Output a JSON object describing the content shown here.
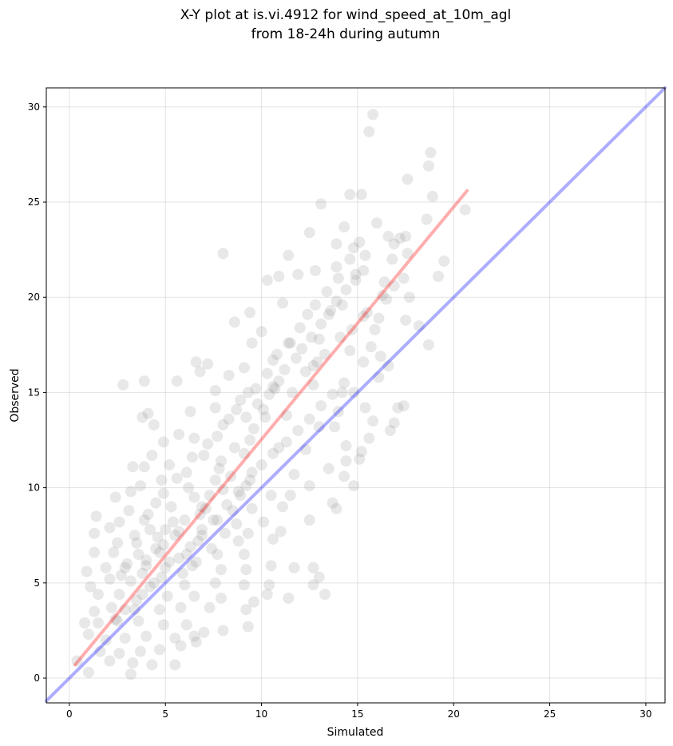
{
  "chart_data": {
    "type": "scatter",
    "title_lines": [
      "X-Y plot at is.vi.4912 for wind_speed_at_10m_agl",
      "from 18-24h during autumn"
    ],
    "xlabel": "Simulated",
    "ylabel": "Observed",
    "xlim": [
      -1.2,
      31
    ],
    "ylim": [
      -1.3,
      31
    ],
    "xticks": [
      0,
      5,
      10,
      15,
      20,
      25,
      30
    ],
    "yticks": [
      0,
      5,
      10,
      15,
      20,
      25,
      30
    ],
    "grid": true,
    "point_color": "#808080",
    "point_opacity": 0.18,
    "series": [
      {
        "type": "scatter",
        "points": [
          [
            15.8,
            29.6
          ],
          [
            15.6,
            28.7
          ],
          [
            18.8,
            27.6
          ],
          [
            18.7,
            26.9
          ],
          [
            17.6,
            26.2
          ],
          [
            15.2,
            25.4
          ],
          [
            14.6,
            25.4
          ],
          [
            18.9,
            25.3
          ],
          [
            20.6,
            24.6
          ],
          [
            13.1,
            24.9
          ],
          [
            18.6,
            24.1
          ],
          [
            16.0,
            23.9
          ],
          [
            12.5,
            23.4
          ],
          [
            14.3,
            23.7
          ],
          [
            16.6,
            23.2
          ],
          [
            17.2,
            23.1
          ],
          [
            17.5,
            23.2
          ],
          [
            16.9,
            22.8
          ],
          [
            8.0,
            22.3
          ],
          [
            11.4,
            22.2
          ],
          [
            14.8,
            22.6
          ],
          [
            13.9,
            22.8
          ],
          [
            15.4,
            22.2
          ],
          [
            16.8,
            22.0
          ],
          [
            17.6,
            22.3
          ],
          [
            19.5,
            21.9
          ],
          [
            19.2,
            21.1
          ],
          [
            11.9,
            21.2
          ],
          [
            12.8,
            21.4
          ],
          [
            10.9,
            21.1
          ],
          [
            10.3,
            20.9
          ],
          [
            13.9,
            21.6
          ],
          [
            14.9,
            21.2
          ],
          [
            16.4,
            20.8
          ],
          [
            17.7,
            20.0
          ],
          [
            16.5,
            19.9
          ],
          [
            11.1,
            19.7
          ],
          [
            9.4,
            19.2
          ],
          [
            8.6,
            18.7
          ],
          [
            12.4,
            19.1
          ],
          [
            13.6,
            19.3
          ],
          [
            14.2,
            19.6
          ],
          [
            15.3,
            19.0
          ],
          [
            16.1,
            18.9
          ],
          [
            17.5,
            18.8
          ],
          [
            18.2,
            18.5
          ],
          [
            15.9,
            18.3
          ],
          [
            10.0,
            18.2
          ],
          [
            9.5,
            17.6
          ],
          [
            11.4,
            17.6
          ],
          [
            13.0,
            17.8
          ],
          [
            14.6,
            17.2
          ],
          [
            15.7,
            17.4
          ],
          [
            18.7,
            17.5
          ],
          [
            16.2,
            16.9
          ],
          [
            15.3,
            16.6
          ],
          [
            16.6,
            16.4
          ],
          [
            12.7,
            16.4
          ],
          [
            10.6,
            16.7
          ],
          [
            9.1,
            16.3
          ],
          [
            8.3,
            15.9
          ],
          [
            7.2,
            16.5
          ],
          [
            5.6,
            15.6
          ],
          [
            3.9,
            15.6
          ],
          [
            2.8,
            15.4
          ],
          [
            6.6,
            16.6
          ],
          [
            6.8,
            16.1
          ],
          [
            7.6,
            15.1
          ],
          [
            10.6,
            15.3
          ],
          [
            12.7,
            15.4
          ],
          [
            14.2,
            15.0
          ],
          [
            14.8,
            15.0
          ],
          [
            16.1,
            15.8
          ],
          [
            17.4,
            14.3
          ],
          [
            17.1,
            14.2
          ],
          [
            15.4,
            14.2
          ],
          [
            14.0,
            14.0
          ],
          [
            4.1,
            13.9
          ],
          [
            3.8,
            13.7
          ],
          [
            4.4,
            13.3
          ],
          [
            6.3,
            14.0
          ],
          [
            7.6,
            14.2
          ],
          [
            9.2,
            13.7
          ],
          [
            11.3,
            13.8
          ],
          [
            13.0,
            13.2
          ],
          [
            13.8,
            13.2
          ],
          [
            15.8,
            13.5
          ],
          [
            16.7,
            13.0
          ],
          [
            16.9,
            13.4
          ],
          [
            15.6,
            12.6
          ],
          [
            4.9,
            12.4
          ],
          [
            5.7,
            12.8
          ],
          [
            6.5,
            12.6
          ],
          [
            9.4,
            12.5
          ],
          [
            10.9,
            12.1
          ],
          [
            12.3,
            12.0
          ],
          [
            14.4,
            12.2
          ],
          [
            15.2,
            11.9
          ],
          [
            4.3,
            11.7
          ],
          [
            3.3,
            11.1
          ],
          [
            3.9,
            11.1
          ],
          [
            5.2,
            11.2
          ],
          [
            6.1,
            10.8
          ],
          [
            7.8,
            11.0
          ],
          [
            9.5,
            10.8
          ],
          [
            11.7,
            10.7
          ],
          [
            13.5,
            11.0
          ],
          [
            14.4,
            11.4
          ],
          [
            15.1,
            11.5
          ],
          [
            14.3,
            10.6
          ],
          [
            14.8,
            10.1
          ],
          [
            12.5,
            10.1
          ],
          [
            10.5,
            9.6
          ],
          [
            9.2,
            10.1
          ],
          [
            7.6,
            10.4
          ],
          [
            4.8,
            10.4
          ],
          [
            3.7,
            10.1
          ],
          [
            3.2,
            9.8
          ],
          [
            2.4,
            9.5
          ],
          [
            6.5,
            9.5
          ],
          [
            8.9,
            9.6
          ],
          [
            11.5,
            9.6
          ],
          [
            13.7,
            9.2
          ],
          [
            13.9,
            8.9
          ],
          [
            11.1,
            9.0
          ],
          [
            8.5,
            8.8
          ],
          [
            6.9,
            9.0
          ],
          [
            4.5,
            9.2
          ],
          [
            3.1,
            8.8
          ],
          [
            1.4,
            8.5
          ],
          [
            2.6,
            8.2
          ],
          [
            3.9,
            8.3
          ],
          [
            5.4,
            8.2
          ],
          [
            7.7,
            8.3
          ],
          [
            10.1,
            8.2
          ],
          [
            12.5,
            8.3
          ],
          [
            11.0,
            7.7
          ],
          [
            9.3,
            7.6
          ],
          [
            6.9,
            7.5
          ],
          [
            5.7,
            7.7
          ],
          [
            4.2,
            7.8
          ],
          [
            2.1,
            7.9
          ],
          [
            1.3,
            7.6
          ],
          [
            2.5,
            7.1
          ],
          [
            3.5,
            7.1
          ],
          [
            4.9,
            7.0
          ],
          [
            6.7,
            7.2
          ],
          [
            8.8,
            7.2
          ],
          [
            10.6,
            7.3
          ],
          [
            9.1,
            6.5
          ],
          [
            7.7,
            6.5
          ],
          [
            6.1,
            6.5
          ],
          [
            4.7,
            6.6
          ],
          [
            3.6,
            6.5
          ],
          [
            2.3,
            6.6
          ],
          [
            1.3,
            6.6
          ],
          [
            0.9,
            5.6
          ],
          [
            1.9,
            5.8
          ],
          [
            2.9,
            5.8
          ],
          [
            4.0,
            5.9
          ],
          [
            5.0,
            5.8
          ],
          [
            6.4,
            5.9
          ],
          [
            7.9,
            5.7
          ],
          [
            9.2,
            5.7
          ],
          [
            10.5,
            5.9
          ],
          [
            11.7,
            5.8
          ],
          [
            12.7,
            5.8
          ],
          [
            13.0,
            5.3
          ],
          [
            12.7,
            4.9
          ],
          [
            10.4,
            4.9
          ],
          [
            9.1,
            4.9
          ],
          [
            7.6,
            5.0
          ],
          [
            6.0,
            4.9
          ],
          [
            4.4,
            5.0
          ],
          [
            3.2,
            5.1
          ],
          [
            2.1,
            5.2
          ],
          [
            1.1,
            4.8
          ],
          [
            1.5,
            4.4
          ],
          [
            2.6,
            4.4
          ],
          [
            3.8,
            4.4
          ],
          [
            5.1,
            4.3
          ],
          [
            6.5,
            4.3
          ],
          [
            7.9,
            4.2
          ],
          [
            10.3,
            4.4
          ],
          [
            11.4,
            4.2
          ],
          [
            13.3,
            4.4
          ],
          [
            9.6,
            4.0
          ],
          [
            9.2,
            3.6
          ],
          [
            7.3,
            3.7
          ],
          [
            5.8,
            3.7
          ],
          [
            4.7,
            3.6
          ],
          [
            3.4,
            3.6
          ],
          [
            2.2,
            3.7
          ],
          [
            1.3,
            3.5
          ],
          [
            0.8,
            2.9
          ],
          [
            1.5,
            2.9
          ],
          [
            2.5,
            3.0
          ],
          [
            3.6,
            3.0
          ],
          [
            4.9,
            2.8
          ],
          [
            6.1,
            2.8
          ],
          [
            7.0,
            2.4
          ],
          [
            9.3,
            2.7
          ],
          [
            8.0,
            2.5
          ],
          [
            6.5,
            2.2
          ],
          [
            5.5,
            2.1
          ],
          [
            4.0,
            2.2
          ],
          [
            2.9,
            2.1
          ],
          [
            1.9,
            2.0
          ],
          [
            1.0,
            2.3
          ],
          [
            1.6,
            1.4
          ],
          [
            2.6,
            1.3
          ],
          [
            3.7,
            1.4
          ],
          [
            4.7,
            1.5
          ],
          [
            5.8,
            1.7
          ],
          [
            6.6,
            1.9
          ],
          [
            2.1,
            0.9
          ],
          [
            3.3,
            0.8
          ],
          [
            4.3,
            0.7
          ],
          [
            5.5,
            0.7
          ],
          [
            1.0,
            0.3
          ],
          [
            3.2,
            0.2
          ],
          [
            0.4,
            0.9
          ],
          [
            4.0,
            6.2
          ],
          [
            4.5,
            6.8
          ],
          [
            5.2,
            6.1
          ],
          [
            3.8,
            5.5
          ],
          [
            4.8,
            5.3
          ],
          [
            5.5,
            7.5
          ],
          [
            6.0,
            8.3
          ],
          [
            5.0,
            7.8
          ],
          [
            6.8,
            8.6
          ],
          [
            7.3,
            9.6
          ],
          [
            7.1,
            8.9
          ],
          [
            8.0,
            9.9
          ],
          [
            8.4,
            10.6
          ],
          [
            7.9,
            11.4
          ],
          [
            8.6,
            12.1
          ],
          [
            9.1,
            11.8
          ],
          [
            9.6,
            13.1
          ],
          [
            10.2,
            13.7
          ],
          [
            9.8,
            14.4
          ],
          [
            10.4,
            14.9
          ],
          [
            10.9,
            15.6
          ],
          [
            11.2,
            16.2
          ],
          [
            11.8,
            16.8
          ],
          [
            12.1,
            17.3
          ],
          [
            12.6,
            17.9
          ],
          [
            13.1,
            18.6
          ],
          [
            13.5,
            19.1
          ],
          [
            13.9,
            19.8
          ],
          [
            14.4,
            20.4
          ],
          [
            14.9,
            20.9
          ],
          [
            15.3,
            21.4
          ],
          [
            5.7,
            6.3
          ],
          [
            6.3,
            6.9
          ],
          [
            6.9,
            7.8
          ],
          [
            7.5,
            8.3
          ],
          [
            8.2,
            9.1
          ],
          [
            8.8,
            9.8
          ],
          [
            9.4,
            10.4
          ],
          [
            10.0,
            11.2
          ],
          [
            10.6,
            11.8
          ],
          [
            11.3,
            12.4
          ],
          [
            11.9,
            13.0
          ],
          [
            12.5,
            13.6
          ],
          [
            13.1,
            14.3
          ],
          [
            13.7,
            14.9
          ],
          [
            14.3,
            15.5
          ],
          [
            4.2,
            4.8
          ],
          [
            3.5,
            4.1
          ],
          [
            2.9,
            3.6
          ],
          [
            2.4,
            3.1
          ],
          [
            5.9,
            5.5
          ],
          [
            6.6,
            6.1
          ],
          [
            7.4,
            6.8
          ],
          [
            8.1,
            7.6
          ],
          [
            8.7,
            8.1
          ],
          [
            9.5,
            8.9
          ],
          [
            3.0,
            6.0
          ],
          [
            2.7,
            5.4
          ],
          [
            4.6,
            7.4
          ],
          [
            5.3,
            9.0
          ],
          [
            6.2,
            10.0
          ],
          [
            7.0,
            11.7
          ],
          [
            7.7,
            12.7
          ],
          [
            8.3,
            13.6
          ],
          [
            8.9,
            14.6
          ],
          [
            9.7,
            15.2
          ],
          [
            10.3,
            16.0
          ],
          [
            10.8,
            17.0
          ],
          [
            11.5,
            17.6
          ],
          [
            12.0,
            18.4
          ],
          [
            12.8,
            19.6
          ],
          [
            13.4,
            20.3
          ],
          [
            14.0,
            21.0
          ],
          [
            14.6,
            22.0
          ],
          [
            15.1,
            22.9
          ],
          [
            3.4,
            7.5
          ],
          [
            4.1,
            8.6
          ],
          [
            4.9,
            9.7
          ],
          [
            5.6,
            10.5
          ],
          [
            6.4,
            11.6
          ],
          [
            7.2,
            12.3
          ],
          [
            8.0,
            13.3
          ],
          [
            8.7,
            14.1
          ],
          [
            9.3,
            15.0
          ],
          [
            10.1,
            14.1
          ],
          [
            10.7,
            15.2
          ],
          [
            11.6,
            15.0
          ],
          [
            12.3,
            16.1
          ],
          [
            12.9,
            16.6
          ],
          [
            13.3,
            17.0
          ],
          [
            14.1,
            17.9
          ],
          [
            14.7,
            18.3
          ],
          [
            15.5,
            19.2
          ],
          [
            16.3,
            20.1
          ],
          [
            16.9,
            20.6
          ],
          [
            17.4,
            21.0
          ]
        ]
      },
      {
        "type": "line",
        "name": "",
        "color": "#ff0000",
        "points": [
          [
            0.3,
            0.7
          ],
          [
            20.7,
            25.6
          ]
        ]
      },
      {
        "type": "line",
        "name": "",
        "color": "#0000ff",
        "points": [
          [
            -1.2,
            -1.2
          ],
          [
            31,
            31
          ]
        ]
      }
    ]
  }
}
